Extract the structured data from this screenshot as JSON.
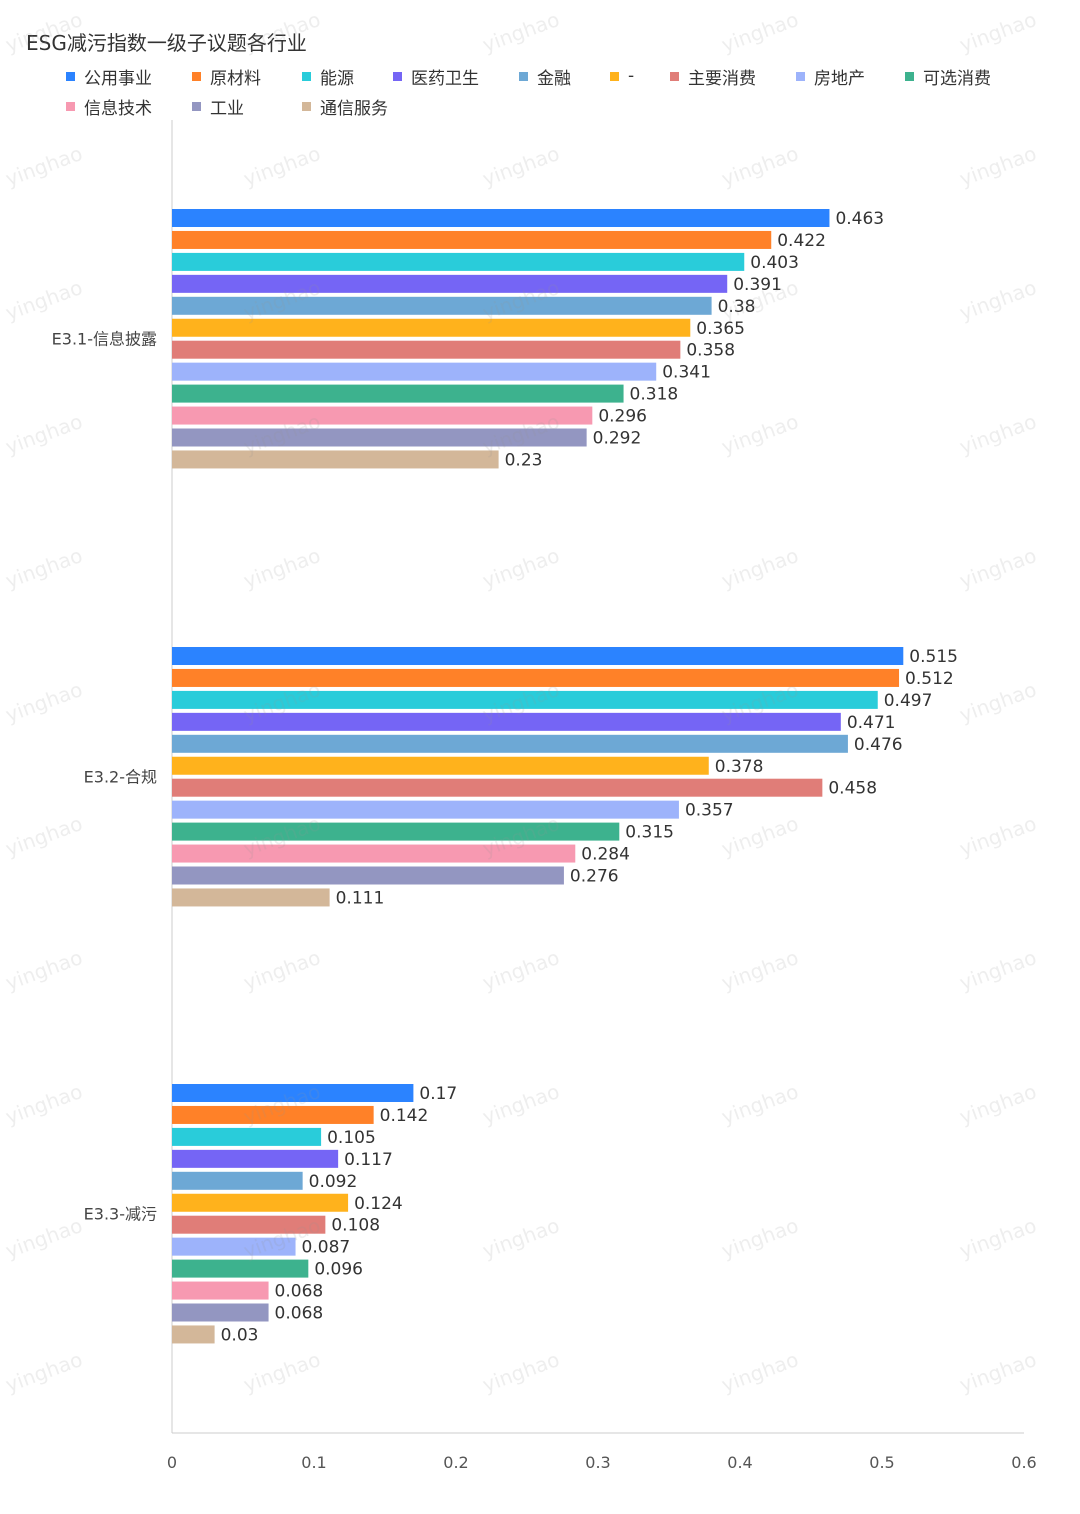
{
  "title": "ESG减污指数一级子议题各行业",
  "watermark_text": "yinghao",
  "chart_data": {
    "type": "bar",
    "orientation": "horizontal",
    "title": "ESG减污指数一级子议题各行业",
    "categories": [
      "E3.1-信息披露",
      "E3.2-合规",
      "E3.3-减污"
    ],
    "xlim": [
      0,
      0.6
    ],
    "x_ticks": [
      "0",
      "0.1",
      "0.2",
      "0.3",
      "0.4",
      "0.5",
      "0.6"
    ],
    "grid": false,
    "legend_position": "top-left",
    "series": [
      {
        "name": "公用事业",
        "color": "#2B83FF",
        "values": [
          0.463,
          0.515,
          0.17
        ]
      },
      {
        "name": "原材料",
        "color": "#FF8128",
        "values": [
          0.422,
          0.512,
          0.142
        ]
      },
      {
        "name": "能源",
        "color": "#29CCDA",
        "values": [
          0.403,
          0.497,
          0.105
        ]
      },
      {
        "name": "医药卫生",
        "color": "#7565F5",
        "values": [
          0.391,
          0.471,
          0.117
        ]
      },
      {
        "name": "金融",
        "color": "#6DA8D5",
        "values": [
          0.38,
          0.476,
          0.092
        ]
      },
      {
        "name": "-",
        "color": "#FFB21C",
        "values": [
          0.365,
          0.378,
          0.124
        ]
      },
      {
        "name": "主要消费",
        "color": "#E07D78",
        "values": [
          0.358,
          0.458,
          0.108
        ]
      },
      {
        "name": "房地产",
        "color": "#9DB3FB",
        "values": [
          0.341,
          0.357,
          0.087
        ]
      },
      {
        "name": "可选消费",
        "color": "#3DB28E",
        "values": [
          0.318,
          0.315,
          0.096
        ]
      },
      {
        "name": "信息技术",
        "color": "#F799B1",
        "values": [
          0.296,
          0.284,
          0.068
        ]
      },
      {
        "name": "工业",
        "color": "#9396C1",
        "values": [
          0.292,
          0.276,
          0.068
        ]
      },
      {
        "name": "通信服务",
        "color": "#D3B799",
        "values": [
          0.23,
          0.111,
          0.03
        ]
      }
    ],
    "value_labels": [
      [
        "0.463",
        "0.515",
        "0.17"
      ],
      [
        "0.422",
        "0.512",
        "0.142"
      ],
      [
        "0.403",
        "0.497",
        "0.105"
      ],
      [
        "0.391",
        "0.471",
        "0.117"
      ],
      [
        "0.38",
        "0.476",
        "0.092"
      ],
      [
        "0.365",
        "0.378",
        "0.124"
      ],
      [
        "0.358",
        "0.458",
        "0.108"
      ],
      [
        "0.341",
        "0.357",
        "0.087"
      ],
      [
        "0.318",
        "0.315",
        "0.096"
      ],
      [
        "0.296",
        "0.284",
        "0.068"
      ],
      [
        "0.292",
        "0.276",
        "0.068"
      ],
      [
        "0.23",
        "0.111",
        "0.03"
      ]
    ]
  }
}
